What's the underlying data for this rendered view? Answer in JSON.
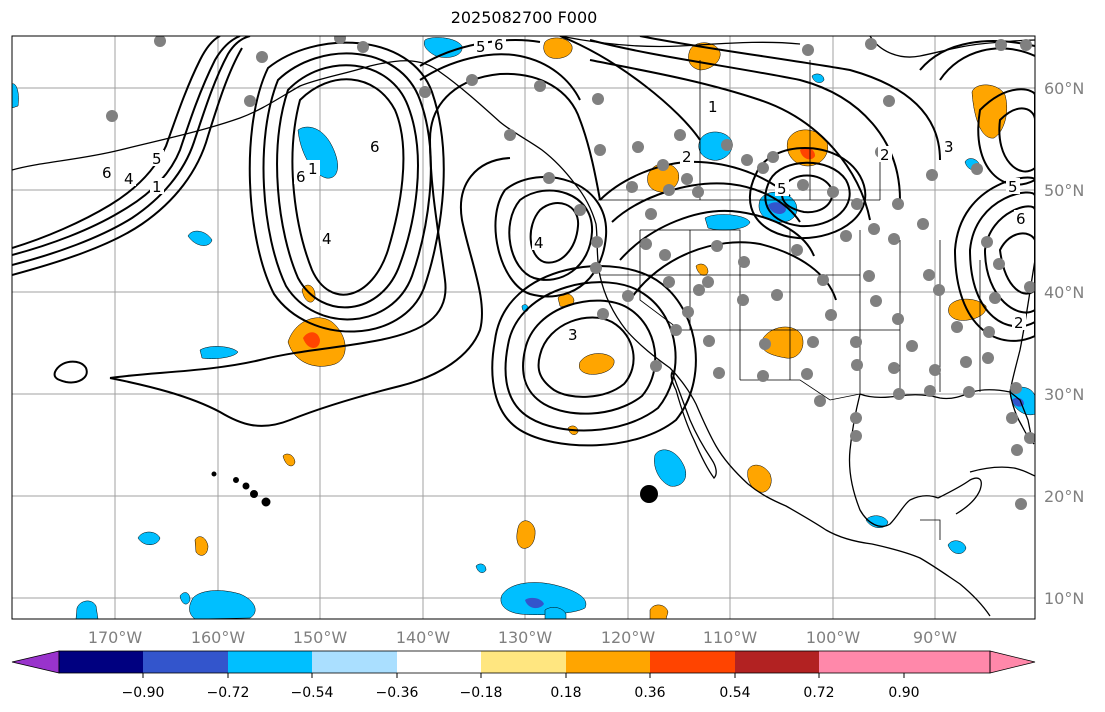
{
  "title": "2025082700 F000",
  "latitude_labels": [
    "60°N",
    "50°N",
    "40°N",
    "30°N",
    "20°N",
    "10°N"
  ],
  "longitude_labels": [
    "170°W",
    "160°W",
    "150°W",
    "140°W",
    "130°W",
    "120°W",
    "110°W",
    "100°W",
    "90°W"
  ],
  "contour_labels": [
    "6",
    "5",
    "4",
    "1",
    "5",
    "6",
    "1",
    "6",
    "6",
    "1",
    "2",
    "4",
    "3",
    "5",
    "4",
    "2",
    "5",
    "3",
    "6",
    "2"
  ],
  "colorbar": {
    "tick_labels": [
      "−0.90",
      "−0.72",
      "−0.54",
      "−0.36",
      "−0.18",
      "0.18",
      "0.36",
      "0.54",
      "0.72",
      "0.90"
    ],
    "colors": [
      "#9933cc",
      "#000080",
      "#3355cc",
      "#00bfff",
      "#aadfff",
      "#ffffff",
      "#ffe680",
      "#ffa500",
      "#ff4400",
      "#b22222",
      "#ff88aa",
      "#ff88aa"
    ]
  },
  "colors": {
    "gridline": "#a0a0a0",
    "station_dot": "#808080",
    "contour": "#000000",
    "axis_label": "#808080"
  }
}
